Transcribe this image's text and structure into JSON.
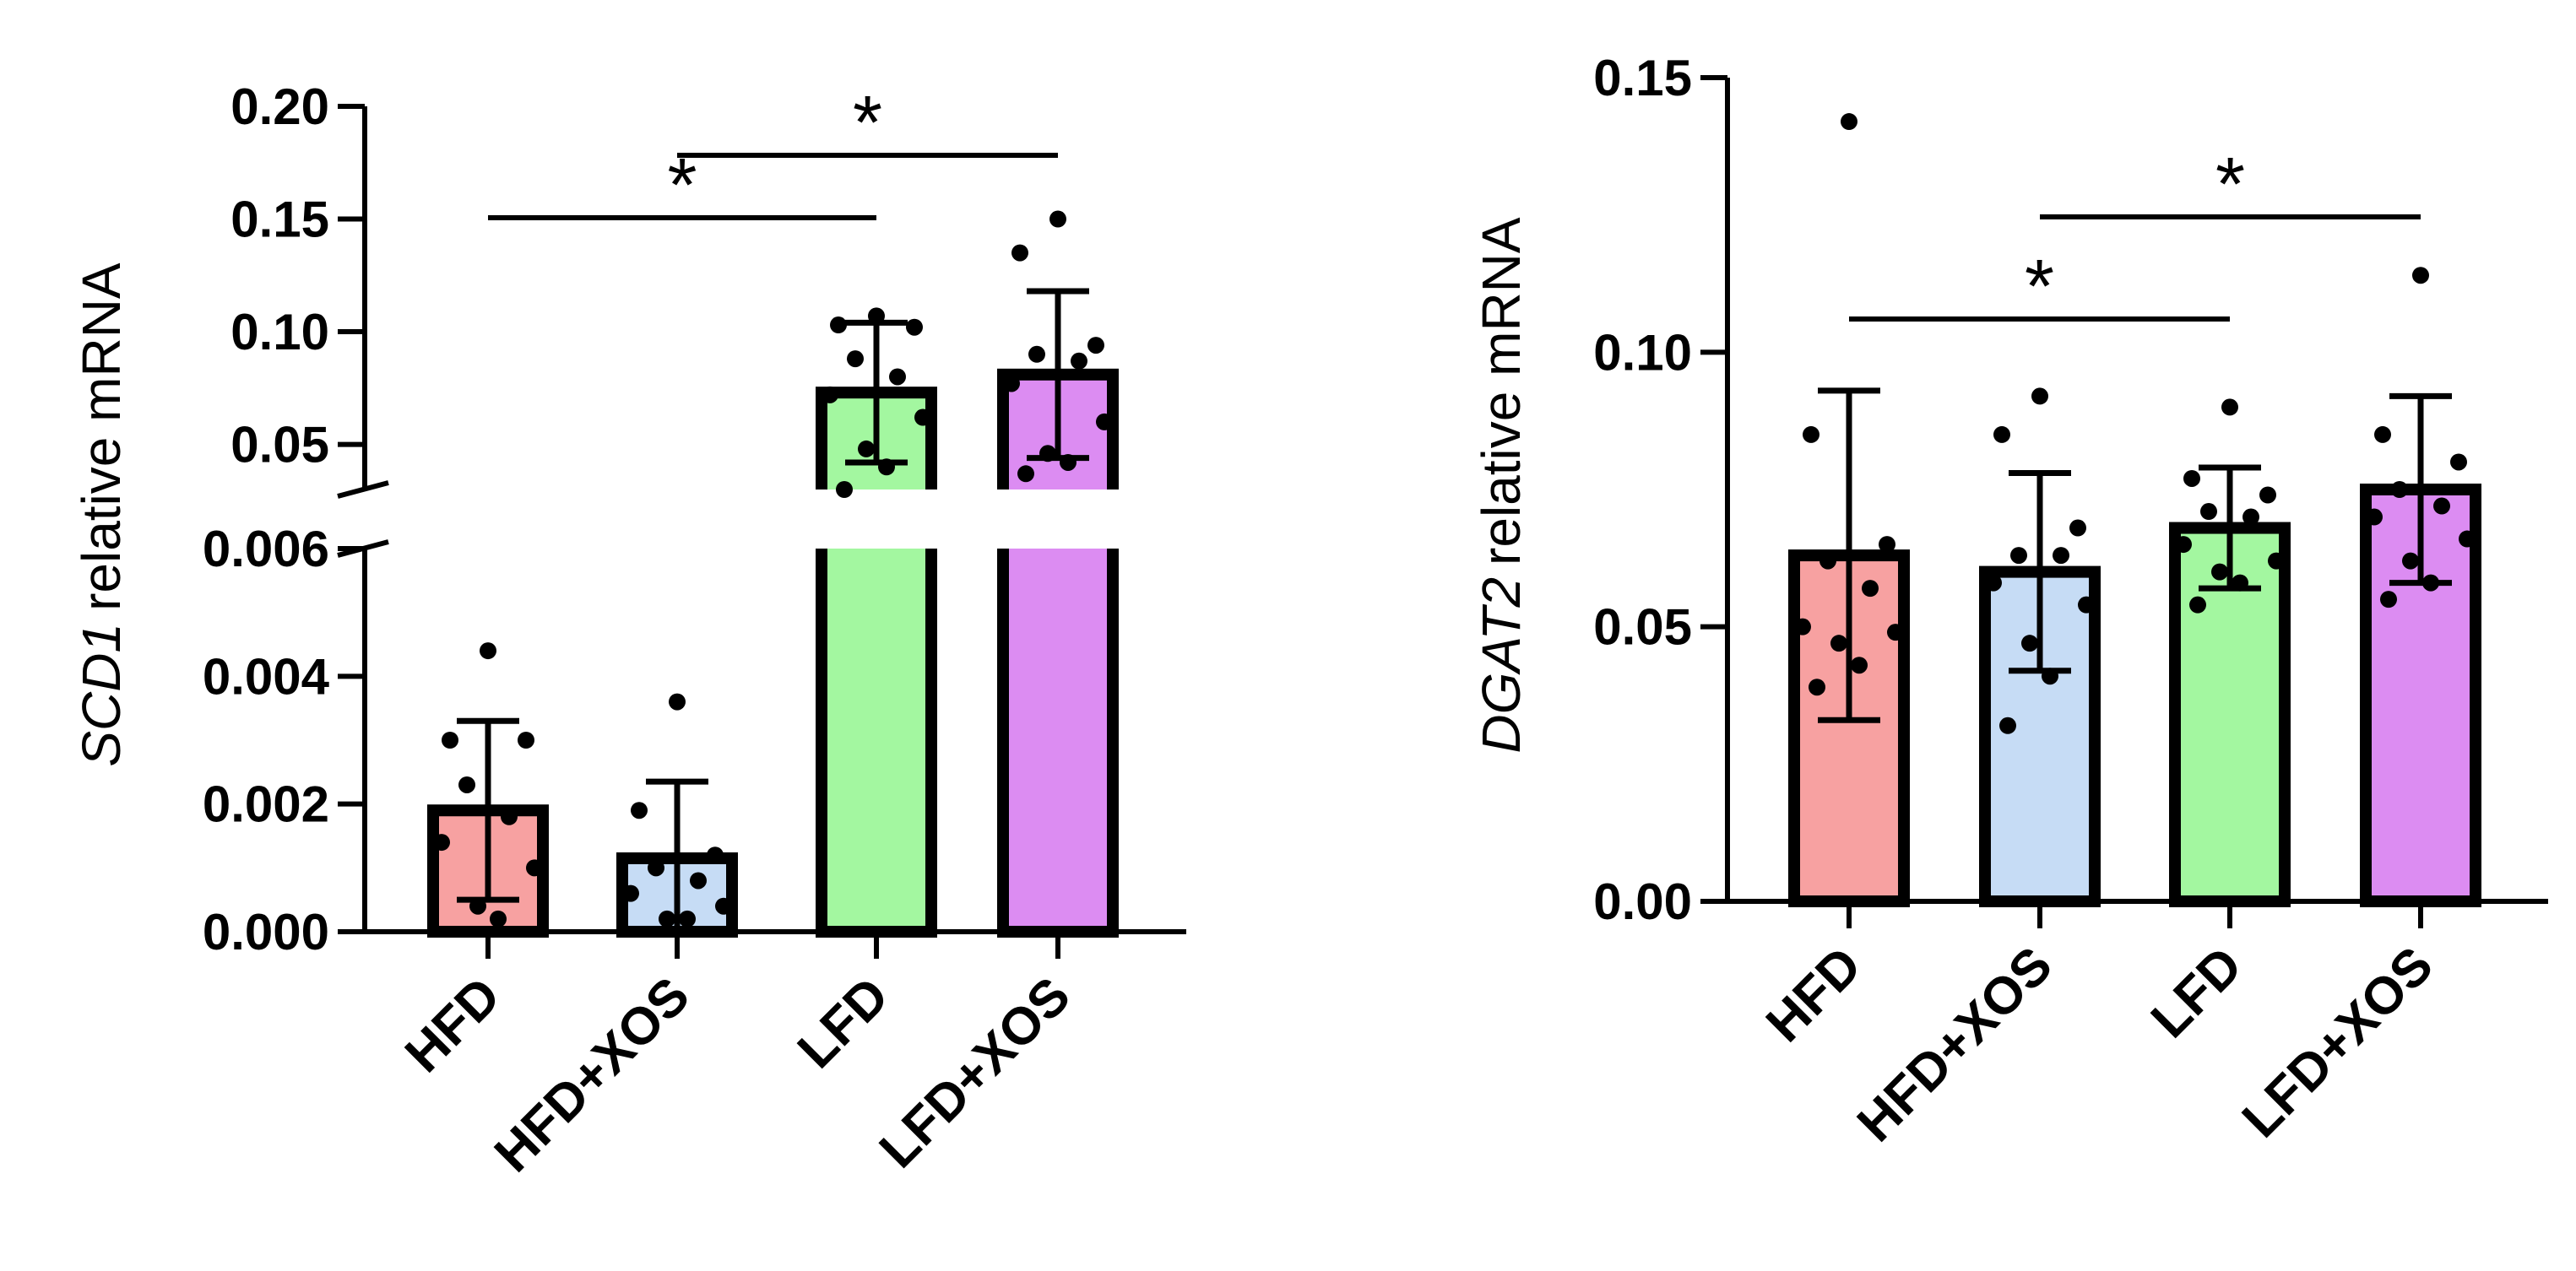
{
  "chart_data": [
    {
      "type": "bar",
      "ylabel_gene": "SCD1",
      "ylabel_rest": "relative mRNA",
      "categories": [
        "HFD",
        "HFD+XOS",
        "LFD",
        "LFD+XOS"
      ],
      "colors": [
        "#f7a1a1",
        "#c6dcf5",
        "#a3f7a0",
        "#dc8cf2"
      ],
      "axis_break": true,
      "lower_range": [
        0,
        0.006
      ],
      "upper_range": [
        0.03,
        0.2
      ],
      "lower_ticks": [
        {
          "v": 0,
          "label": "0.000"
        },
        {
          "v": 0.002,
          "label": "0.002"
        },
        {
          "v": 0.004,
          "label": "0.004"
        },
        {
          "v": 0.006,
          "label": "0.006"
        }
      ],
      "upper_ticks": [
        {
          "v": 0.05,
          "label": "0.05"
        },
        {
          "v": 0.1,
          "label": "0.10"
        },
        {
          "v": 0.15,
          "label": "0.15"
        },
        {
          "v": 0.2,
          "label": "0.20"
        }
      ],
      "means": [
        0.0019,
        0.00115,
        0.073,
        0.081
      ],
      "sd": [
        0.0014,
        0.0012,
        0.031,
        0.037
      ],
      "points": [
        [
          0.0044,
          0.003,
          0.003,
          0.0023,
          0.0018,
          0.0014,
          0.001,
          0.0004,
          0.0002
        ],
        [
          0.0036,
          0.0019,
          0.0012,
          0.001,
          0.0008,
          0.0006,
          0.0004,
          0.0002,
          0.0002
        ],
        [
          0.107,
          0.103,
          0.102,
          0.088,
          0.08,
          0.072,
          0.062,
          0.048,
          0.04,
          0.03
        ],
        [
          0.15,
          0.135,
          0.094,
          0.09,
          0.087,
          0.077,
          0.06,
          0.046,
          0.042,
          0.037
        ]
      ],
      "significance": [
        {
          "from": 0,
          "to": 2,
          "label": "*"
        },
        {
          "from": 1,
          "to": 3,
          "label": "*"
        }
      ]
    },
    {
      "type": "bar",
      "ylabel_gene": "DGAT2",
      "ylabel_rest": "relative mRNA",
      "categories": [
        "HFD",
        "HFD+XOS",
        "LFD",
        "LFD+XOS"
      ],
      "colors": [
        "#f7a1a1",
        "#c6dcf5",
        "#a3f7a0",
        "#dc8cf2"
      ],
      "ylim": [
        0,
        0.15
      ],
      "ticks": [
        {
          "v": 0,
          "label": "0.00"
        },
        {
          "v": 0.05,
          "label": "0.05"
        },
        {
          "v": 0.1,
          "label": "0.10"
        },
        {
          "v": 0.15,
          "label": "0.15"
        }
      ],
      "means": [
        0.063,
        0.06,
        0.068,
        0.075
      ],
      "sd": [
        0.03,
        0.018,
        0.011,
        0.017
      ],
      "points": [
        [
          0.142,
          0.085,
          0.065,
          0.062,
          0.057,
          0.05,
          0.049,
          0.047,
          0.043,
          0.039
        ],
        [
          0.092,
          0.085,
          0.068,
          0.063,
          0.063,
          0.058,
          0.054,
          0.047,
          0.041,
          0.032
        ],
        [
          0.09,
          0.077,
          0.074,
          0.071,
          0.07,
          0.065,
          0.062,
          0.06,
          0.058,
          0.054
        ],
        [
          0.114,
          0.085,
          0.08,
          0.075,
          0.072,
          0.07,
          0.066,
          0.062,
          0.058,
          0.055
        ]
      ],
      "significance": [
        {
          "from": 0,
          "to": 2,
          "label": "*"
        },
        {
          "from": 1,
          "to": 3,
          "label": "*"
        }
      ]
    }
  ]
}
